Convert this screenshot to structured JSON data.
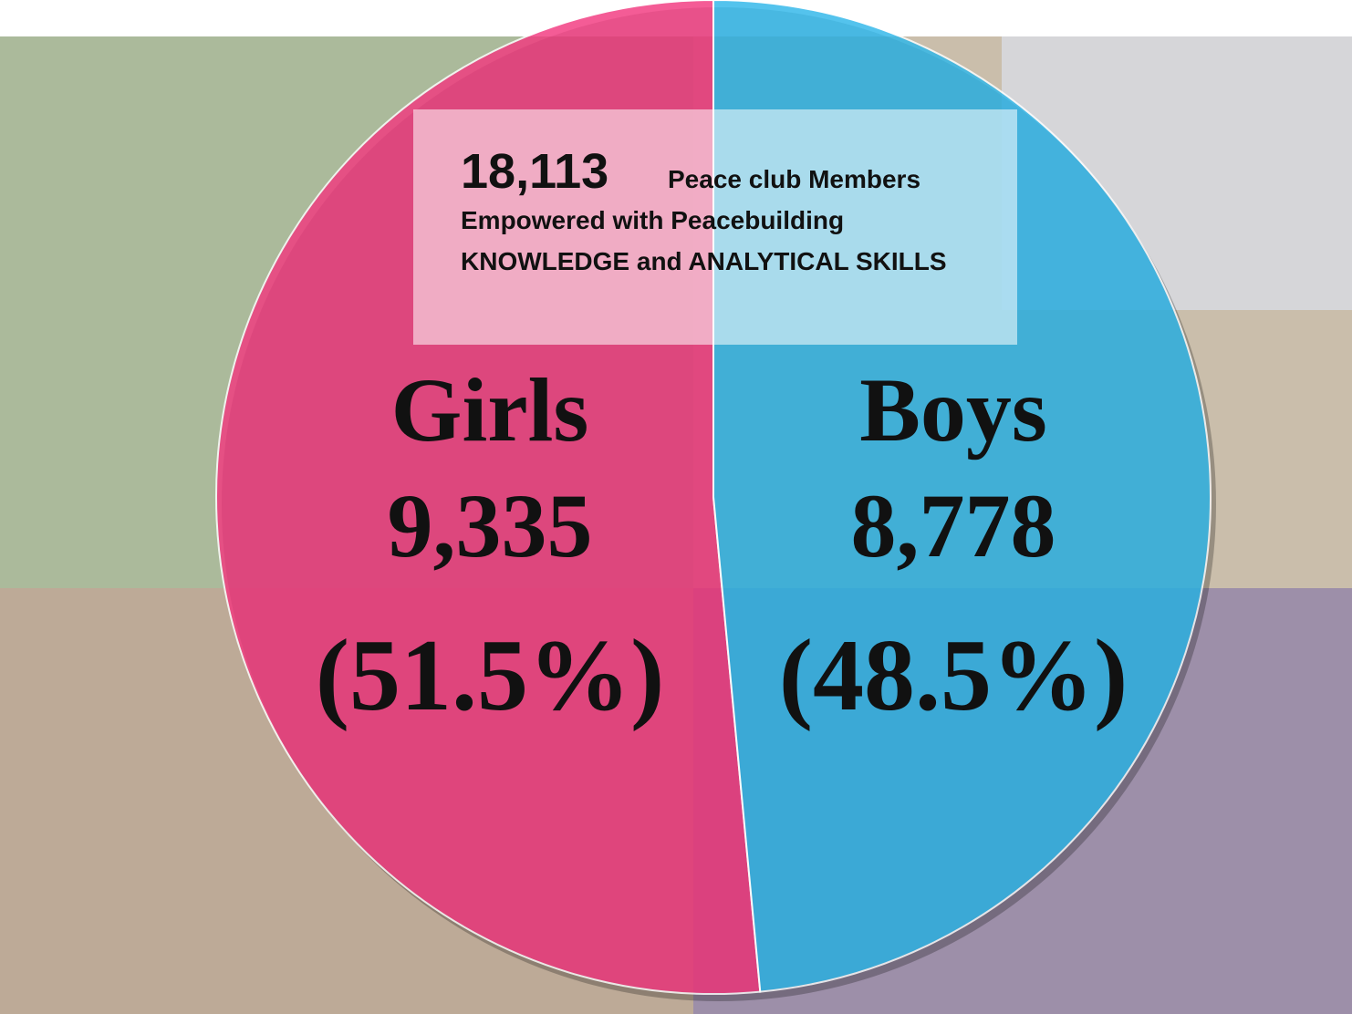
{
  "chart_data": {
    "type": "pie",
    "total": {
      "value": 18113,
      "label": "18,113"
    },
    "heading": [
      "Peace club Members",
      "Empowered with Peacebuilding",
      "KNOWLEDGE and ANALYTICAL SKILLS"
    ],
    "categories": [
      "Girls",
      "Boys"
    ],
    "counts": [
      {
        "value": 9335,
        "label": "9,335"
      },
      {
        "value": 8778,
        "label": "8,778"
      }
    ],
    "values": [
      51.5,
      48.5
    ],
    "value_labels": [
      "(51.5%)",
      "(48.5%)"
    ],
    "colors": [
      "#f2397f",
      "#2fb7ea"
    ]
  }
}
